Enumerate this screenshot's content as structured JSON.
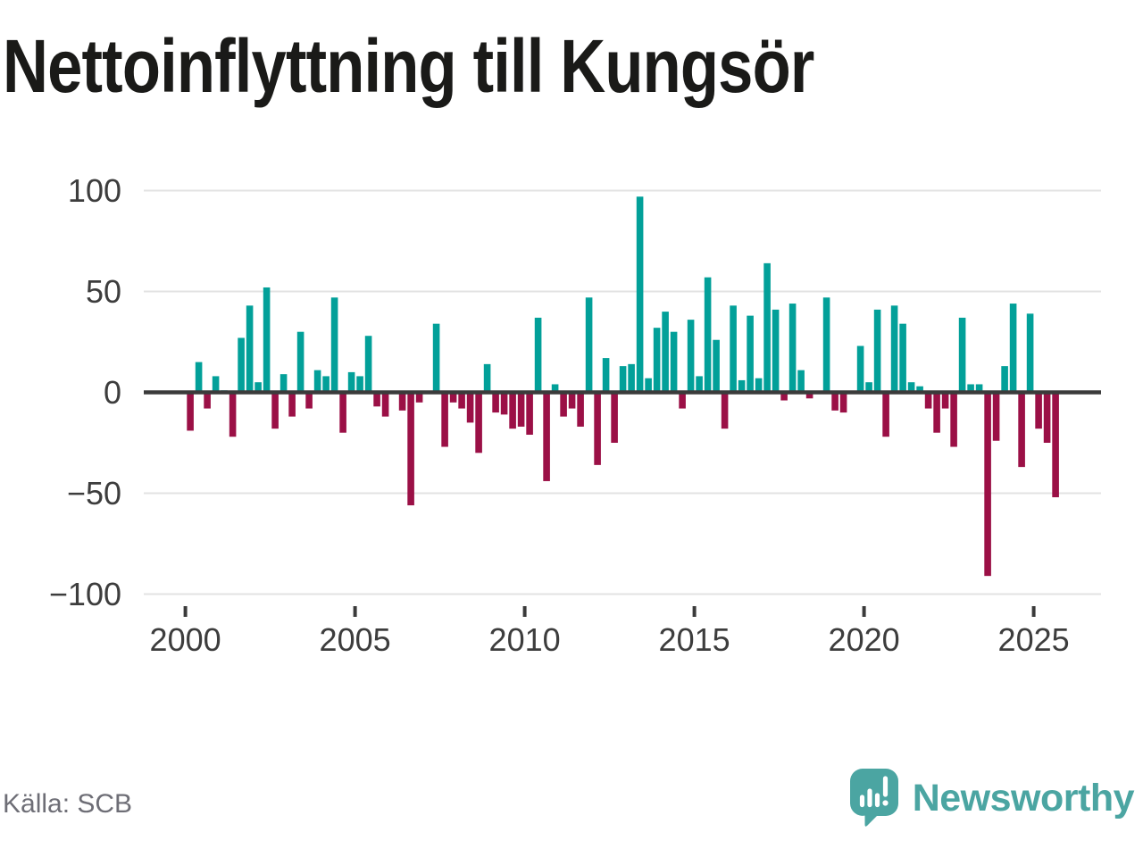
{
  "title": "Nettoinflyttning till Kungsör",
  "source_label": "Källa: SCB",
  "logo": {
    "brand_text": "Newsworthy",
    "icon": "speech-bubble-bar-chart-icon"
  },
  "colors": {
    "positive_bar": "#02a099",
    "negative_bar": "#9b1046",
    "gridline": "#e3e3e3",
    "zero_line": "#3b3b3b",
    "axis_text": "#3d3d3d",
    "title_text": "#1a1a18",
    "source_text": "#6e6e76",
    "logo_teal": "#4ba5a2"
  },
  "chart_data": {
    "type": "bar",
    "title": "Nettoinflyttning till Kungsör",
    "frequency": "quarterly",
    "x_start": "2000-Q1",
    "x_end": "2025-Q3",
    "x_tick_labels": [
      "2000",
      "2005",
      "2010",
      "2015",
      "2020",
      "2025"
    ],
    "y_tick_values": [
      100,
      50,
      0,
      -50,
      -100
    ],
    "y_tick_labels": [
      "100",
      "50",
      "0",
      "−50",
      "−100"
    ],
    "ylim": [
      -100,
      100
    ],
    "grid": true,
    "legend": false,
    "series": [
      {
        "name": "Nettoinflyttning",
        "values": [
          -19,
          15,
          -8,
          8,
          1,
          -22,
          27,
          43,
          5,
          52,
          -18,
          9,
          -12,
          30,
          -8,
          11,
          8,
          47,
          -20,
          10,
          8,
          28,
          -7,
          -12,
          0,
          -9,
          -56,
          -5,
          0,
          34,
          -27,
          -5,
          -8,
          -15,
          -30,
          14,
          -10,
          -11,
          -18,
          -17,
          -21,
          37,
          -44,
          4,
          -12,
          -8,
          -17,
          47,
          -36,
          17,
          -25,
          13,
          14,
          97,
          7,
          32,
          40,
          30,
          -8,
          36,
          8,
          57,
          26,
          -18,
          43,
          6,
          38,
          7,
          64,
          41,
          -4,
          44,
          11,
          -3,
          0,
          47,
          -9,
          -10,
          0,
          23,
          5,
          41,
          -22,
          43,
          34,
          5,
          3,
          -8,
          -20,
          -8,
          -27,
          37,
          4,
          4,
          -91,
          -24,
          13,
          44,
          -37,
          39,
          -18,
          -25,
          -52
        ]
      }
    ]
  }
}
